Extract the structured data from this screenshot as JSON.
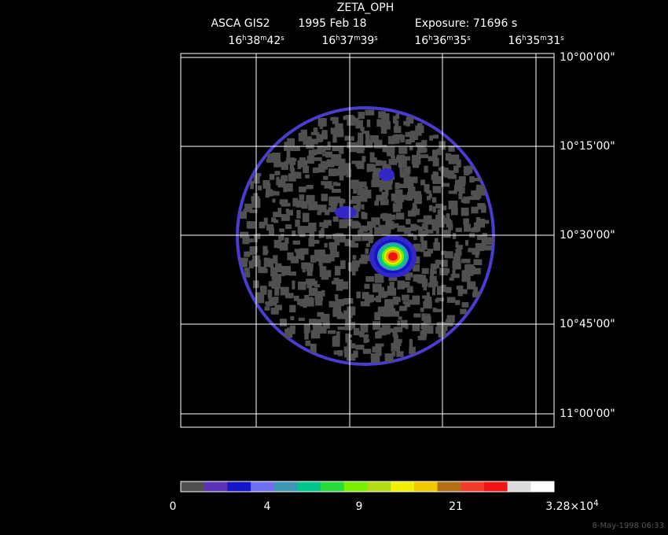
{
  "title": "ZETA_OPH",
  "subtitle": {
    "instrument": "ASCA GIS2",
    "date": "1995 Feb 18",
    "exposure": "Exposure: 71696 s"
  },
  "ra_labels": [
    [
      "16",
      "h",
      "38",
      "m",
      "42",
      "s"
    ],
    [
      "16",
      "h",
      "37",
      "m",
      "39",
      "s"
    ],
    [
      "16",
      "h",
      "36",
      "m",
      "35",
      "s"
    ],
    [
      "16",
      "h",
      "35",
      "m",
      "31",
      "s"
    ]
  ],
  "dec_labels": [
    "10°00'00\"",
    "10°15'00\"",
    "10°30'00\"",
    "10°45'00\"",
    "11°00'00\""
  ],
  "colorbar": {
    "colors": [
      "#505050",
      "#5a32b4",
      "#1414c8",
      "#6e6ef0",
      "#3c96b4",
      "#00c88c",
      "#28dc3c",
      "#78f000",
      "#b4dc14",
      "#f0f000",
      "#f0c800",
      "#b46e14",
      "#f03c28",
      "#f01414",
      "#dcdcdc",
      "#ffffff"
    ],
    "labels": [
      [
        "0"
      ],
      [
        "4"
      ],
      [
        "9"
      ],
      [
        "21"
      ],
      [
        "3.28×10",
        "4"
      ]
    ]
  },
  "timestamp": "8-May-1998 06:33"
}
